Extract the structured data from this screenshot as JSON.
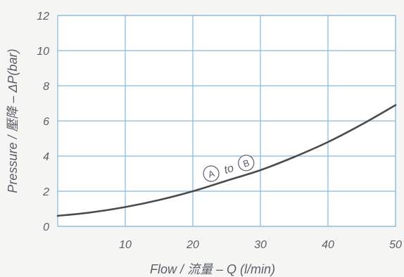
{
  "chart_data": {
    "type": "line",
    "xlabel": "Flow / 流量 – Q (l/min)",
    "ylabel": "Pressure / 壓降 – ΔP(bar)",
    "xlim": [
      0,
      50
    ],
    "ylim": [
      0,
      12
    ],
    "x_ticks": [
      10,
      20,
      30,
      40,
      50
    ],
    "y_ticks": [
      0,
      2,
      4,
      6,
      8,
      10,
      12
    ],
    "grid": true,
    "series": [
      {
        "x": [
          0,
          5,
          10,
          15,
          20,
          25,
          30,
          35,
          40,
          45,
          50
        ],
        "y": [
          0.6,
          0.8,
          1.1,
          1.5,
          2.0,
          2.6,
          3.2,
          3.95,
          4.8,
          5.8,
          6.9
        ]
      }
    ],
    "annotation": {
      "from": "A",
      "connector": "to",
      "to": "B"
    }
  }
}
